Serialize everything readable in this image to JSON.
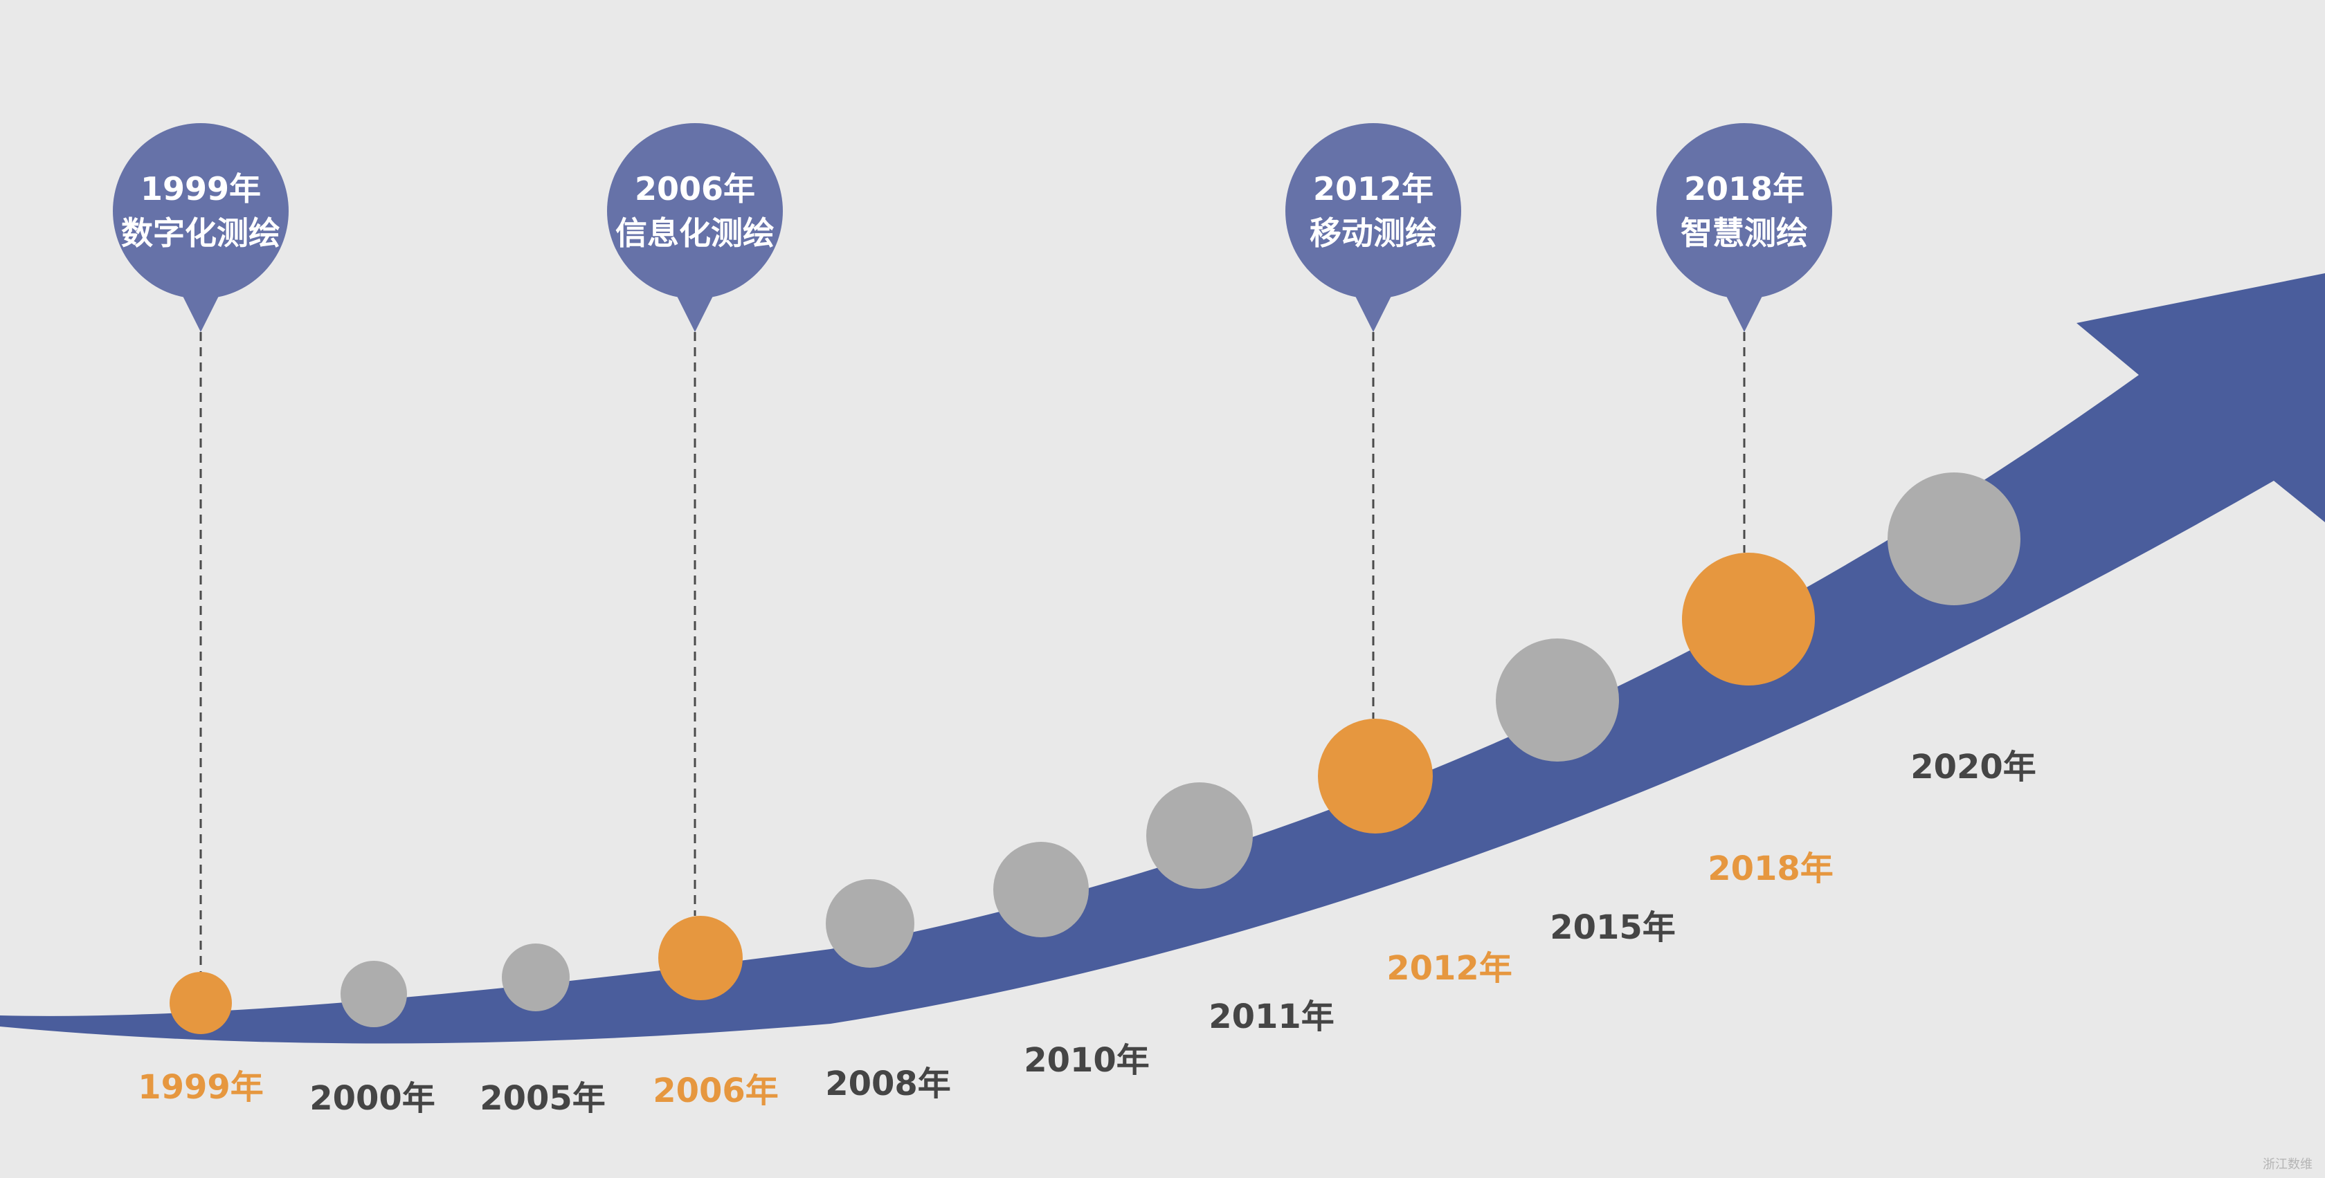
{
  "colors": {
    "background": "#e9e9e9",
    "arrow": "#4a5d9c",
    "pin": "#6672a8",
    "highlight": "#e6973f",
    "dot": "#adadad",
    "label_dark": "#454545",
    "label_highlight": "#e6973f",
    "pin_text": "#ffffff"
  },
  "timeline": [
    {
      "year": "1999年",
      "highlight": true
    },
    {
      "year": "2000年",
      "highlight": false
    },
    {
      "year": "2005年",
      "highlight": false
    },
    {
      "year": "2006年",
      "highlight": true
    },
    {
      "year": "2008年",
      "highlight": false
    },
    {
      "year": "2010年",
      "highlight": false
    },
    {
      "year": "2011年",
      "highlight": false
    },
    {
      "year": "2012年",
      "highlight": true
    },
    {
      "year": "2015年",
      "highlight": false
    },
    {
      "year": "2018年",
      "highlight": true
    },
    {
      "year": "2020年",
      "highlight": false
    }
  ],
  "milestones": [
    {
      "year": "1999年",
      "title": "数字化测绘"
    },
    {
      "year": "2006年",
      "title": "信息化测绘"
    },
    {
      "year": "2012年",
      "title": "移动测绘"
    },
    {
      "year": "2018年",
      "title": "智慧测绘"
    }
  ],
  "watermark": "浙江数维"
}
